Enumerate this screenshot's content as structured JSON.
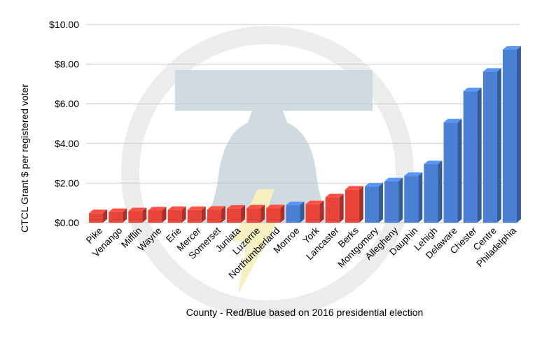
{
  "chart_data": {
    "type": "bar",
    "title": "",
    "xlabel": "County - Red/Blue based on 2016 presidential election",
    "ylabel": "CTCL Grant $ per registered voter",
    "ylim": [
      0,
      10
    ],
    "yticks": [
      "$0.00",
      "$2.00",
      "$4.00",
      "$6.00",
      "$8.00",
      "$10.00"
    ],
    "grid": true,
    "legend": "none",
    "categories": [
      "Pike",
      "Venango",
      "Mifflin",
      "Wayne",
      "Erie",
      "Mercer",
      "Somerset",
      "Juniata",
      "Luzerne",
      "Northumberland",
      "Monroe",
      "York",
      "Lancaster",
      "Berks",
      "Montgomery",
      "Allegheny",
      "Dauphin",
      "Lehigh",
      "Delaware",
      "Chester",
      "Centre",
      "Philadelphia"
    ],
    "values": [
      0.48,
      0.54,
      0.58,
      0.62,
      0.64,
      0.64,
      0.66,
      0.71,
      0.72,
      0.73,
      0.89,
      0.93,
      1.28,
      1.67,
      1.83,
      2.09,
      2.36,
      2.95,
      5.06,
      6.63,
      7.62,
      8.73
    ],
    "party": [
      "red",
      "red",
      "red",
      "red",
      "red",
      "red",
      "red",
      "red",
      "red",
      "red",
      "blue",
      "red",
      "red",
      "red",
      "blue",
      "blue",
      "blue",
      "blue",
      "blue",
      "blue",
      "blue",
      "blue"
    ],
    "colors": {
      "red": "#e8443a",
      "blue": "#4a7fd4",
      "grid": "#c8c8c8",
      "watermark_ring": "#ececec",
      "watermark_bell": "#cfdbe0",
      "watermark_bolt": "#f6efc0"
    }
  }
}
